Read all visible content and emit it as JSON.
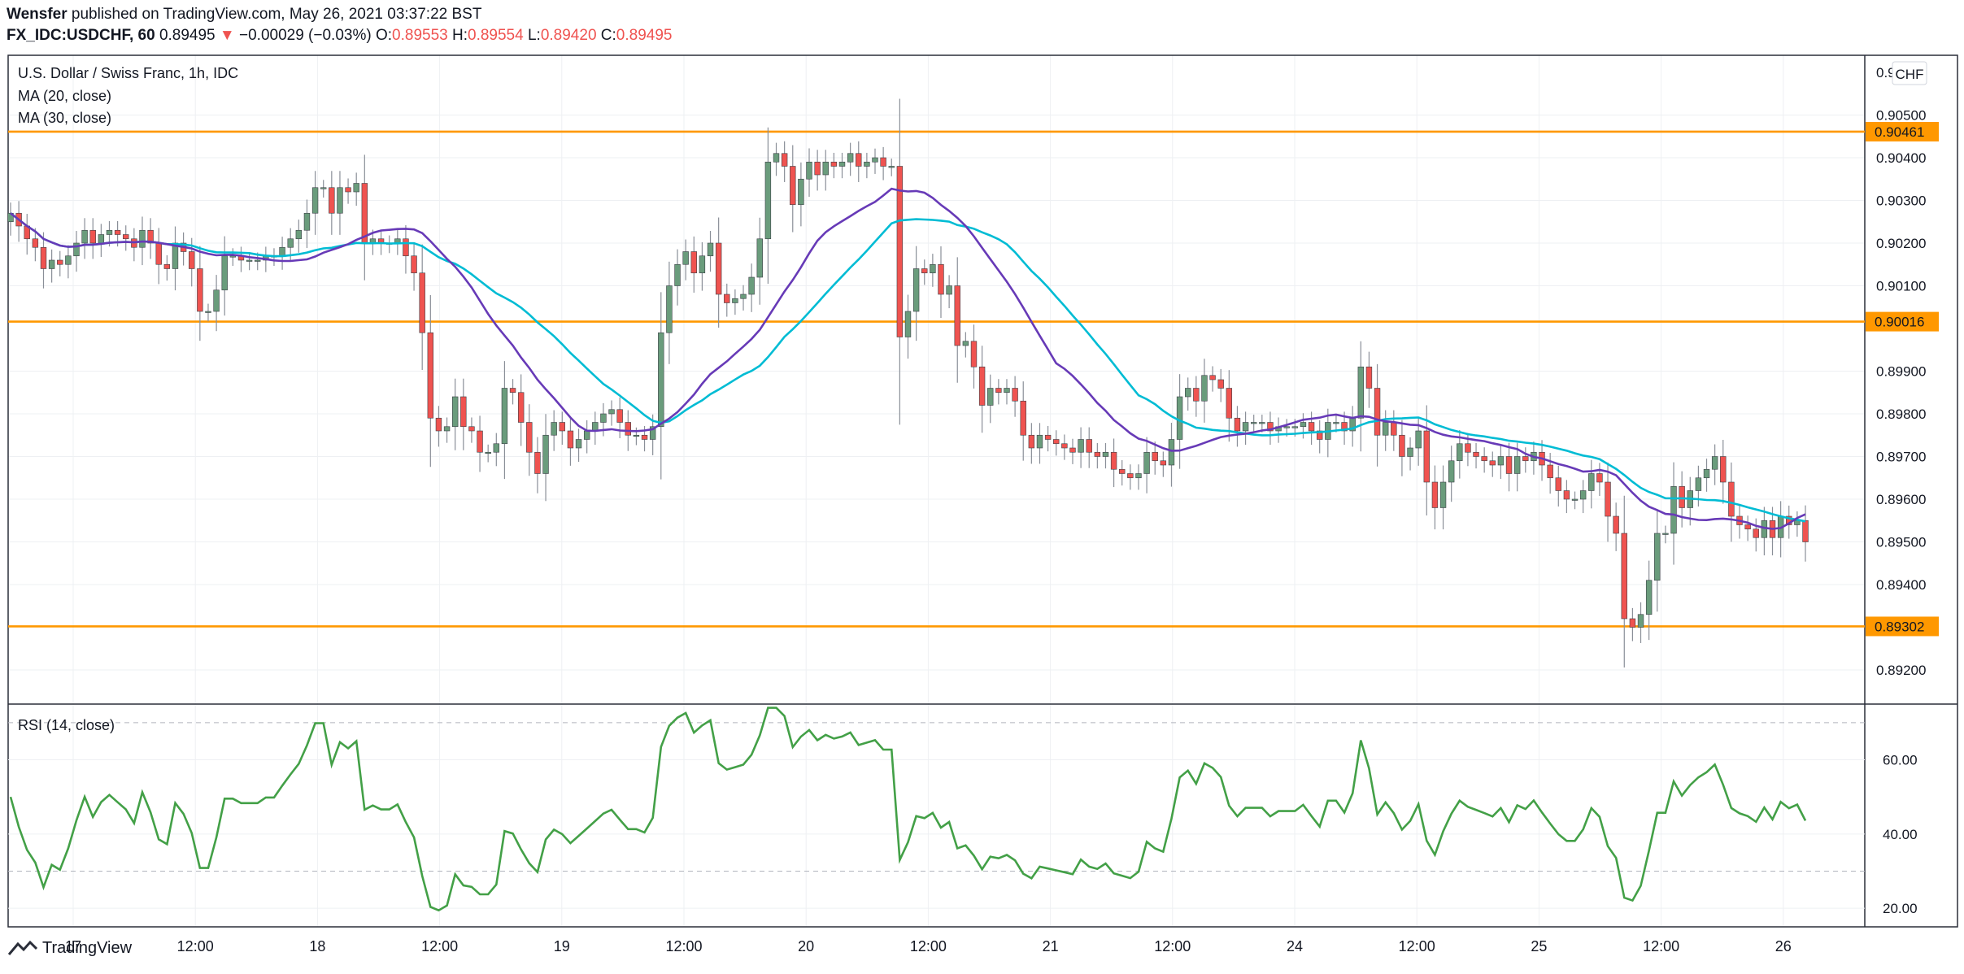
{
  "header": {
    "publisher": "Wensfer",
    "published_text": "published on TradingView.com, May 26, 2021 03:37:22 BST",
    "symbol": "FX_IDC:USDCHF, 60",
    "last": "0.89495",
    "change": "−0.00029 (−0.03%)",
    "o_label": "O:",
    "o": "0.89553",
    "h_label": "H:",
    "h": "0.89554",
    "l_label": "L:",
    "l": "0.89420",
    "c_label": "C:",
    "c": "0.89495"
  },
  "price_pane": {
    "title": "U.S. Dollar / Swiss Franc, 1h, IDC",
    "ma20_label": "MA (20, close)",
    "ma30_label": "MA (30, close)",
    "currency": "CHF",
    "y_ticks": [
      "0.90500",
      "0.90400",
      "0.90300",
      "0.90200",
      "0.90100",
      "0.89900",
      "0.89800",
      "0.89700",
      "0.89600",
      "0.89500",
      "0.89400",
      "0.89200"
    ],
    "y_partial_tick": "0.90600",
    "levels": [
      "0.90461",
      "0.90016",
      "0.89302"
    ]
  },
  "rsi_pane": {
    "label": "RSI (14, close)",
    "y_ticks": [
      "60.00",
      "40.00",
      "20.00"
    ]
  },
  "x_axis": {
    "ticks": [
      "17",
      "12:00",
      "18",
      "12:00",
      "19",
      "12:00",
      "20",
      "12:00",
      "21",
      "12:00",
      "24",
      "12:00",
      "25",
      "12:00",
      "26"
    ]
  },
  "footer": {
    "brand": "TradingView"
  },
  "colors": {
    "up": "#6a9c7c",
    "down": "#ef5350",
    "ma20": "#673ab7",
    "ma30": "#00bcd4",
    "level": "#ff9800",
    "rsi": "#43a047",
    "grid": "#eef0f3"
  },
  "chart_data": {
    "type": "candlestick",
    "title": "U.S. Dollar / Swiss Franc, 1h, IDC",
    "ylabel": "CHF",
    "ylim": [
      0.8912,
      0.9064
    ],
    "horizontal_levels": [
      0.90461,
      0.90016,
      0.89302
    ],
    "close": [
      0.9027,
      0.9024,
      0.9021,
      0.9019,
      0.9014,
      0.9016,
      0.9015,
      0.9017,
      0.902,
      0.9023,
      0.902,
      0.9022,
      0.9023,
      0.9022,
      0.9021,
      0.9019,
      0.9023,
      0.902,
      0.9015,
      0.9014,
      0.902,
      0.9018,
      0.9014,
      0.9004,
      0.9004,
      0.9009,
      0.9017,
      0.9017,
      0.9016,
      0.9016,
      0.9016,
      0.9017,
      0.9017,
      0.9019,
      0.9021,
      0.9023,
      0.9027,
      0.9033,
      0.9033,
      0.9027,
      0.9033,
      0.9032,
      0.9034,
      0.902,
      0.9021,
      0.902,
      0.902,
      0.9021,
      0.9017,
      0.9013,
      0.8999,
      0.8979,
      0.8976,
      0.8977,
      0.8984,
      0.8977,
      0.8976,
      0.8971,
      0.8971,
      0.8973,
      0.8986,
      0.8985,
      0.8978,
      0.8971,
      0.8966,
      0.8975,
      0.8978,
      0.8976,
      0.8972,
      0.8974,
      0.8976,
      0.8978,
      0.898,
      0.8981,
      0.8978,
      0.8975,
      0.8975,
      0.8974,
      0.8977,
      0.8999,
      0.901,
      0.9015,
      0.9018,
      0.9013,
      0.9017,
      0.902,
      0.9008,
      0.9006,
      0.9007,
      0.9008,
      0.9012,
      0.9021,
      0.9039,
      0.9041,
      0.9038,
      0.9029,
      0.9035,
      0.9039,
      0.9036,
      0.9039,
      0.9038,
      0.9039,
      0.9041,
      0.9038,
      0.9039,
      0.904,
      0.9038,
      0.9038,
      0.8998,
      0.9004,
      0.9014,
      0.9013,
      0.9015,
      0.9008,
      0.901,
      0.8996,
      0.8997,
      0.8991,
      0.8982,
      0.8986,
      0.8985,
      0.8986,
      0.8983,
      0.8975,
      0.8972,
      0.8975,
      0.8974,
      0.8973,
      0.8972,
      0.8971,
      0.8974,
      0.8971,
      0.897,
      0.8971,
      0.8967,
      0.8966,
      0.8965,
      0.8966,
      0.8971,
      0.8969,
      0.8968,
      0.8974,
      0.8984,
      0.8986,
      0.8983,
      0.8989,
      0.8988,
      0.8986,
      0.8979,
      0.8976,
      0.8978,
      0.8978,
      0.8978,
      0.8976,
      0.8977,
      0.8977,
      0.8977,
      0.8978,
      0.8976,
      0.8974,
      0.8978,
      0.8978,
      0.8976,
      0.8979,
      0.8991,
      0.8986,
      0.8975,
      0.8978,
      0.8975,
      0.897,
      0.8972,
      0.8976,
      0.8964,
      0.8958,
      0.8964,
      0.8969,
      0.8973,
      0.8971,
      0.897,
      0.8969,
      0.8968,
      0.897,
      0.8966,
      0.897,
      0.8969,
      0.8971,
      0.8968,
      0.8965,
      0.8962,
      0.896,
      0.896,
      0.8962,
      0.8966,
      0.8964,
      0.8956,
      0.8952,
      0.8932,
      0.893,
      0.8933,
      0.8941,
      0.8952,
      0.8952,
      0.8963,
      0.8958,
      0.8962,
      0.8965,
      0.8967,
      0.897,
      0.8964,
      0.8956,
      0.8954,
      0.8953,
      0.8951,
      0.8955,
      0.8951,
      0.8956,
      0.8954,
      0.8955,
      0.895
    ],
    "rsi_ylim": [
      15,
      75
    ]
  }
}
